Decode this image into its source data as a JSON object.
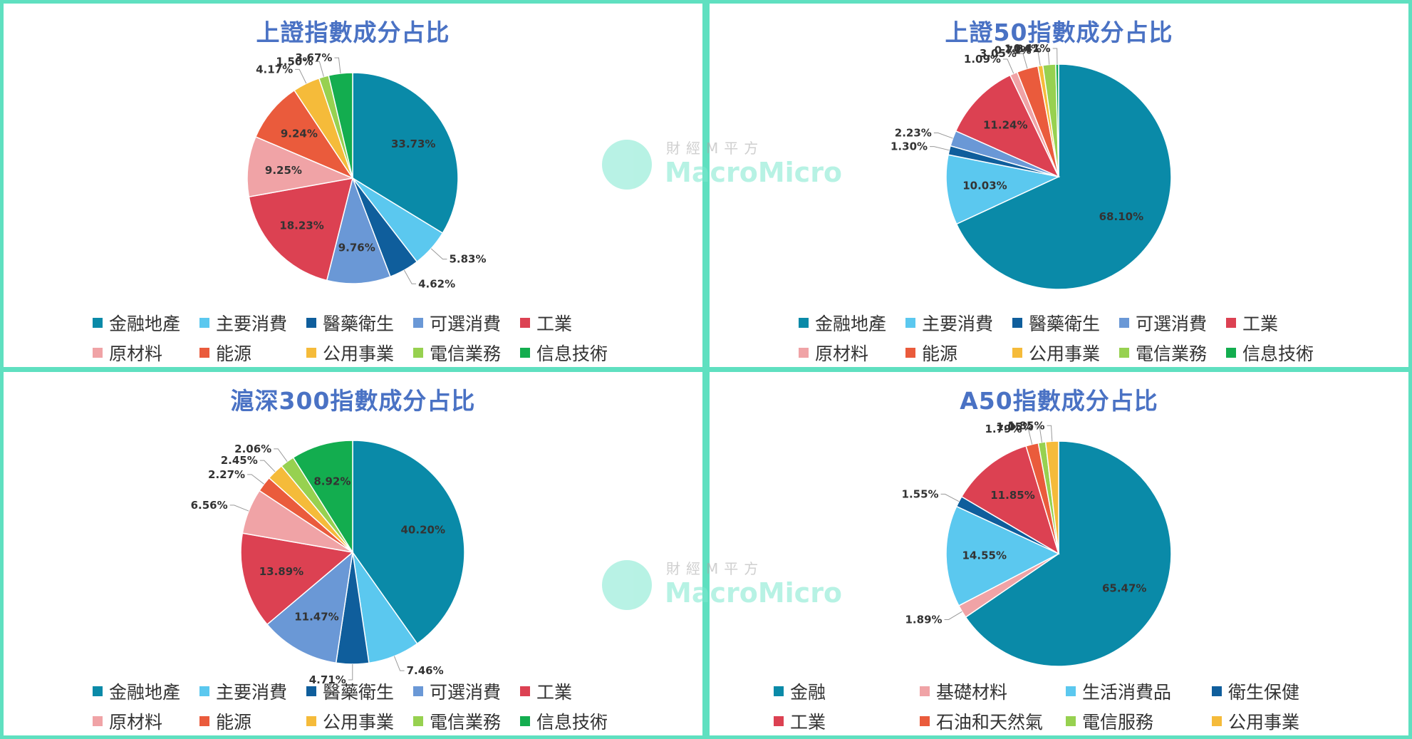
{
  "colors": {
    "teal": "#0a8aa8",
    "sky": "#5bc8ef",
    "navy": "#0f5e9c",
    "steel": "#6a98d6",
    "red": "#dc4152",
    "pink": "#f0a3a6",
    "orange": "#ea5b3c",
    "yellow": "#f5bb3a",
    "lime": "#97d150",
    "green": "#13ad4f",
    "border": "#5fe0c0",
    "title": "#4a72c4"
  },
  "watermark": {
    "cn": "財經M平方",
    "en": "MacroMicro"
  },
  "chart_data": [
    {
      "type": "pie",
      "title": "上證指數成分占比",
      "series": [
        {
          "name": "金融地產",
          "value": 33.73,
          "label": "33.73%",
          "color": "#0a8aa8"
        },
        {
          "name": "主要消費",
          "value": 5.83,
          "label": "5.83%",
          "color": "#5bc8ef"
        },
        {
          "name": "醫藥衛生",
          "value": 4.62,
          "label": "4.62%",
          "color": "#0f5e9c"
        },
        {
          "name": "可選消費",
          "value": 9.76,
          "label": "9.76%",
          "color": "#6a98d6"
        },
        {
          "name": "工業",
          "value": 18.23,
          "label": "18.23%",
          "color": "#dc4152"
        },
        {
          "name": "原材料",
          "value": 9.25,
          "label": "9.25%",
          "color": "#f0a3a6"
        },
        {
          "name": "能源",
          "value": 9.24,
          "label": "9.24%",
          "color": "#ea5b3c"
        },
        {
          "name": "公用事業",
          "value": 4.17,
          "label": "4.17%",
          "color": "#f5bb3a"
        },
        {
          "name": "電信業務",
          "value": 1.5,
          "label": "1.50%",
          "color": "#97d150"
        },
        {
          "name": "信息技術",
          "value": 3.67,
          "label": "3.67%",
          "color": "#13ad4f"
        }
      ],
      "legend": [
        {
          "name": "金融地產",
          "color": "#0a8aa8"
        },
        {
          "name": "主要消費",
          "color": "#5bc8ef"
        },
        {
          "name": "醫藥衛生",
          "color": "#0f5e9c"
        },
        {
          "name": "可選消費",
          "color": "#6a98d6"
        },
        {
          "name": "工業",
          "color": "#dc4152"
        },
        {
          "name": "原材料",
          "color": "#f0a3a6"
        },
        {
          "name": "能源",
          "color": "#ea5b3c"
        },
        {
          "name": "公用事業",
          "color": "#f5bb3a"
        },
        {
          "name": "電信業務",
          "color": "#97d150"
        },
        {
          "name": "信息技術",
          "color": "#13ad4f"
        }
      ],
      "legend_placement": "bottom"
    },
    {
      "type": "pie",
      "title": "上證50指數成分占比",
      "series": [
        {
          "name": "金融地產",
          "value": 68.1,
          "label": "68.10%",
          "color": "#0a8aa8"
        },
        {
          "name": "主要消費",
          "value": 10.03,
          "label": "10.03%",
          "color": "#5bc8ef"
        },
        {
          "name": "醫藥衛生",
          "value": 1.3,
          "label": "1.30%",
          "color": "#0f5e9c"
        },
        {
          "name": "可選消費",
          "value": 2.23,
          "label": "2.23%",
          "color": "#6a98d6"
        },
        {
          "name": "工業",
          "value": 11.24,
          "label": "11.24%",
          "color": "#dc4152"
        },
        {
          "name": "原材料",
          "value": 1.09,
          "label": "1.09%",
          "color": "#f0a3a6"
        },
        {
          "name": "能源",
          "value": 3.05,
          "label": "3.05%",
          "color": "#ea5b3c"
        },
        {
          "name": "公用事業",
          "value": 0.71,
          "label": "0.71%",
          "color": "#f5bb3a"
        },
        {
          "name": "電信業務",
          "value": 1.84,
          "label": "1.84%",
          "color": "#97d150"
        },
        {
          "name": "信息技術",
          "value": 0.41,
          "label": "0.41%",
          "color": "#13ad4f"
        }
      ],
      "legend": [
        {
          "name": "金融地產",
          "color": "#0a8aa8"
        },
        {
          "name": "主要消費",
          "color": "#5bc8ef"
        },
        {
          "name": "醫藥衛生",
          "color": "#0f5e9c"
        },
        {
          "name": "可選消費",
          "color": "#6a98d6"
        },
        {
          "name": "工業",
          "color": "#dc4152"
        },
        {
          "name": "原材料",
          "color": "#f0a3a6"
        },
        {
          "name": "能源",
          "color": "#ea5b3c"
        },
        {
          "name": "公用事業",
          "color": "#f5bb3a"
        },
        {
          "name": "電信業務",
          "color": "#97d150"
        },
        {
          "name": "信息技術",
          "color": "#13ad4f"
        }
      ],
      "legend_placement": "bottom"
    },
    {
      "type": "pie",
      "title": "滬深300指數成分占比",
      "series": [
        {
          "name": "金融地產",
          "value": 40.2,
          "label": "40.20%",
          "color": "#0a8aa8"
        },
        {
          "name": "主要消費",
          "value": 7.46,
          "label": "7.46%",
          "color": "#5bc8ef"
        },
        {
          "name": "醫藥衛生",
          "value": 4.71,
          "label": "4.71%",
          "color": "#0f5e9c"
        },
        {
          "name": "可選消費",
          "value": 11.47,
          "label": "11.47%",
          "color": "#6a98d6"
        },
        {
          "name": "工業",
          "value": 13.89,
          "label": "13.89%",
          "color": "#dc4152"
        },
        {
          "name": "原材料",
          "value": 6.56,
          "label": "6.56%",
          "color": "#f0a3a6"
        },
        {
          "name": "能源",
          "value": 2.27,
          "label": "2.27%",
          "color": "#ea5b3c"
        },
        {
          "name": "公用事業",
          "value": 2.45,
          "label": "2.45%",
          "color": "#f5bb3a"
        },
        {
          "name": "電信業務",
          "value": 2.06,
          "label": "2.06%",
          "color": "#97d150"
        },
        {
          "name": "信息技術",
          "value": 8.92,
          "label": "8.92%",
          "color": "#13ad4f"
        }
      ],
      "legend": [
        {
          "name": "金融地產",
          "color": "#0a8aa8"
        },
        {
          "name": "主要消費",
          "color": "#5bc8ef"
        },
        {
          "name": "醫藥衛生",
          "color": "#0f5e9c"
        },
        {
          "name": "可選消費",
          "color": "#6a98d6"
        },
        {
          "name": "工業",
          "color": "#dc4152"
        },
        {
          "name": "原材料",
          "color": "#f0a3a6"
        },
        {
          "name": "能源",
          "color": "#ea5b3c"
        },
        {
          "name": "公用事業",
          "color": "#f5bb3a"
        },
        {
          "name": "電信業務",
          "color": "#97d150"
        },
        {
          "name": "信息技術",
          "color": "#13ad4f"
        }
      ],
      "legend_placement": "bottom"
    },
    {
      "type": "pie",
      "title": "A50指數成分占比",
      "series": [
        {
          "name": "金融",
          "value": 65.47,
          "label": "65.47%",
          "color": "#0a8aa8"
        },
        {
          "name": "基礎材料",
          "value": 1.89,
          "label": "1.89%",
          "color": "#f0a3a6"
        },
        {
          "name": "生活消費品",
          "value": 14.55,
          "label": "14.55%",
          "color": "#5bc8ef"
        },
        {
          "name": "衛生保健",
          "value": 1.55,
          "label": "1.55%",
          "color": "#0f5e9c"
        },
        {
          "name": "工業",
          "value": 11.85,
          "label": "11.85%",
          "color": "#dc4152"
        },
        {
          "name": "石油和天然氣",
          "value": 1.79,
          "label": "1.79%",
          "color": "#ea5b3c"
        },
        {
          "name": "電信服務",
          "value": 1.05,
          "label": "1.05%",
          "color": "#97d150"
        },
        {
          "name": "公用事業",
          "value": 1.85,
          "label": "1.85%",
          "color": "#f5bb3a"
        }
      ],
      "legend": [
        {
          "name": "金融",
          "color": "#0a8aa8"
        },
        {
          "name": "基礎材料",
          "color": "#f0a3a6"
        },
        {
          "name": "生活消費品",
          "color": "#5bc8ef"
        },
        {
          "name": "衛生保健",
          "color": "#0f5e9c"
        },
        {
          "name": "工業",
          "color": "#dc4152"
        },
        {
          "name": "石油和天然氣",
          "color": "#ea5b3c"
        },
        {
          "name": "電信服務",
          "color": "#97d150"
        },
        {
          "name": "公用事業",
          "color": "#f5bb3a"
        }
      ],
      "legend_placement": "bottom"
    }
  ]
}
